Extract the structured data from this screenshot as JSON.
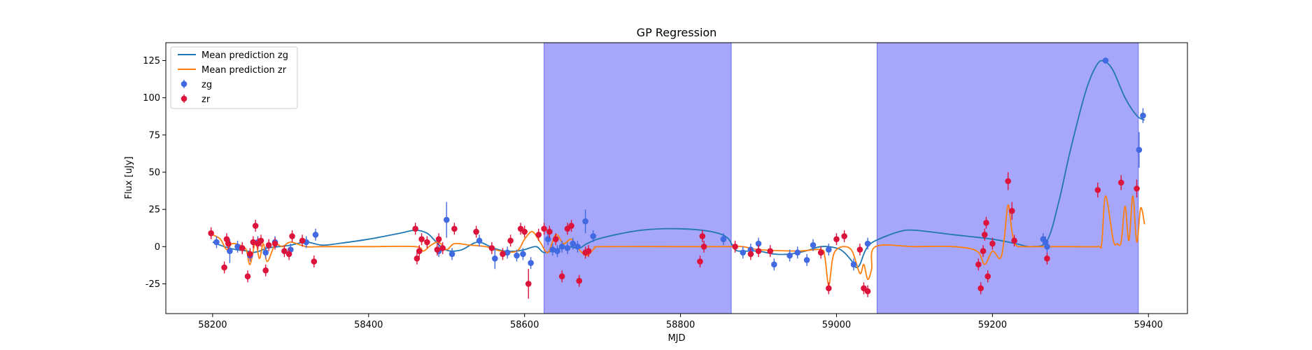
{
  "chart_data": {
    "type": "scatter",
    "title": "GP Regression",
    "xlabel": "MJD",
    "ylabel": "Flux [uJy]",
    "xlim": [
      58140,
      59450
    ],
    "ylim": [
      -45,
      137
    ],
    "xticks": [
      58200,
      58400,
      58600,
      58800,
      59000,
      59200,
      59400
    ],
    "yticks": [
      -25,
      0,
      25,
      50,
      75,
      100,
      125
    ],
    "legend_position": "upper-left",
    "shaded_regions": [
      {
        "x0": 58625,
        "x1": 58865,
        "color": "#a6a6fb"
      },
      {
        "x0": 59052,
        "x1": 59387,
        "color": "#a6a6fb"
      }
    ],
    "series": [
      {
        "name": "Mean prediction zg",
        "kind": "line",
        "color": "#1f77b4",
        "x": [
          58200,
          58215,
          58230,
          58245,
          58250,
          58260,
          58270,
          58285,
          58300,
          58320,
          58340,
          58360,
          58400,
          58440,
          58460,
          58475,
          58485,
          58495,
          58505,
          58520,
          58540,
          58560,
          58575,
          58590,
          58600,
          58615,
          58625,
          58640,
          58655,
          58670,
          58680,
          58700,
          58750,
          58800,
          58840,
          58860,
          58870,
          58880,
          58900,
          58920,
          58940,
          58960,
          58980,
          59000,
          59010,
          59020,
          59025,
          59030,
          59035,
          59040,
          59050,
          59080,
          59100,
          59150,
          59200,
          59230,
          59250,
          59270,
          59285,
          59300,
          59320,
          59335,
          59345,
          59355,
          59370,
          59385,
          59395
        ],
        "y": [
          3,
          0,
          -2,
          -3,
          -4,
          -3,
          -1,
          0,
          1,
          3,
          1,
          2,
          5,
          9,
          11,
          9,
          4,
          -1,
          -3,
          -2,
          3,
          -1,
          -3,
          -3,
          -2,
          0,
          -4,
          -2,
          0,
          -1,
          2,
          6,
          11,
          12,
          10,
          6,
          -2,
          -3,
          -3,
          -5,
          -5,
          -3,
          0,
          -1,
          -4,
          -10,
          -14,
          -12,
          -5,
          0,
          4,
          10,
          11,
          8,
          5,
          2,
          0,
          4,
          30,
          65,
          105,
          123,
          124,
          118,
          100,
          88,
          85
        ]
      },
      {
        "name": "Mean prediction zr",
        "kind": "line",
        "color": "#ff7f0e",
        "x": [
          58200,
          58210,
          58218,
          58225,
          58235,
          58243,
          58248,
          58255,
          58260,
          58265,
          58270,
          58280,
          58290,
          58300,
          58320,
          58340,
          58400,
          58460,
          58470,
          58480,
          58490,
          58500,
          58510,
          58530,
          58550,
          58570,
          58590,
          58600,
          58610,
          58620,
          58630,
          58640,
          58650,
          58660,
          58670,
          58680,
          58690,
          58700,
          58800,
          58830,
          58860,
          58880,
          58900,
          58950,
          58980,
          58985,
          58990,
          58995,
          59000,
          59010,
          59020,
          59030,
          59035,
          59040,
          59045,
          59050,
          59100,
          59150,
          59180,
          59190,
          59200,
          59210,
          59215,
          59220,
          59225,
          59230,
          59240,
          59260,
          59280,
          59300,
          59335,
          59340,
          59345,
          59355,
          59360,
          59365,
          59370,
          59375,
          59380,
          59385,
          59390,
          59395
        ],
        "y": [
          8,
          5,
          -2,
          2,
          1,
          -2,
          -12,
          3,
          -8,
          2,
          -10,
          1,
          0,
          3,
          0,
          0,
          0,
          0,
          -3,
          1,
          3,
          -2,
          2,
          1,
          0,
          -3,
          -3,
          5,
          10,
          3,
          -4,
          8,
          2,
          5,
          -2,
          -6,
          -1,
          0,
          0,
          0,
          0,
          0,
          -2,
          -3,
          -2,
          -7,
          -26,
          -8,
          -2,
          0,
          -3,
          -18,
          -12,
          -22,
          -15,
          0,
          0,
          0,
          -3,
          -12,
          -3,
          -8,
          5,
          28,
          10,
          1,
          0,
          0,
          0,
          0,
          0,
          2,
          34,
          4,
          2,
          3,
          27,
          4,
          34,
          3,
          26,
          15
        ]
      },
      {
        "name": "zg",
        "kind": "errorbar",
        "color": "#4169e1",
        "x": [
          58205,
          58222,
          58232,
          58248,
          58258,
          58268,
          58280,
          58300,
          58320,
          58332,
          58490,
          58500,
          58507,
          58542,
          58562,
          58578,
          58590,
          58598,
          58608,
          58630,
          58636,
          58642,
          58648,
          58655,
          58662,
          58668,
          58678,
          58688,
          58855,
          58880,
          58890,
          58900,
          58920,
          58940,
          58950,
          58962,
          58970,
          58990,
          59022,
          59040,
          59265,
          59268,
          59270,
          59345,
          59388,
          59393
        ],
        "y": [
          3,
          -3,
          0,
          -6,
          3,
          -4,
          3,
          -2,
          3,
          8,
          -3,
          18,
          -5,
          4,
          -8,
          -4,
          -6,
          -5,
          -11,
          5,
          -2,
          -3,
          0,
          -1,
          2,
          0,
          17,
          7,
          5,
          -4,
          -2,
          2,
          -12,
          -6,
          -4,
          -9,
          1,
          -2,
          -12,
          2,
          5,
          3,
          0,
          125,
          65,
          88
        ],
        "err": [
          4,
          8,
          4,
          4,
          4,
          4,
          4,
          4,
          4,
          4,
          4,
          12,
          4,
          4,
          7,
          4,
          4,
          4,
          4,
          4,
          4,
          4,
          4,
          4,
          4,
          4,
          8,
          4,
          4,
          4,
          4,
          4,
          4,
          4,
          4,
          4,
          4,
          4,
          4,
          4,
          4,
          4,
          4,
          2,
          12,
          5
        ]
      },
      {
        "name": "zr",
        "kind": "errorbar",
        "color": "#dc143c",
        "x": [
          58198,
          58215,
          58218,
          58220,
          58238,
          58245,
          58248,
          58252,
          58255,
          58258,
          58262,
          58268,
          58272,
          58280,
          58292,
          58298,
          58302,
          58315,
          58330,
          58460,
          58462,
          58465,
          58468,
          58475,
          58488,
          58490,
          58495,
          58510,
          58538,
          58558,
          58572,
          58582,
          58595,
          58600,
          58605,
          58618,
          58625,
          58632,
          58640,
          58648,
          58655,
          58660,
          58670,
          58678,
          58682,
          58825,
          58828,
          58830,
          58870,
          58890,
          58900,
          58915,
          58980,
          58990,
          59000,
          59010,
          59030,
          59035,
          59040,
          59182,
          59185,
          59188,
          59190,
          59192,
          59194,
          59200,
          59220,
          59225,
          59228,
          59270,
          59335,
          59365,
          59385
        ],
        "y": [
          9,
          -14,
          5,
          2,
          -1,
          -20,
          -5,
          3,
          14,
          2,
          4,
          -16,
          1,
          2,
          -3,
          -5,
          7,
          4,
          -10,
          12,
          -8,
          -3,
          5,
          3,
          -2,
          5,
          -1,
          12,
          10,
          -1,
          -5,
          4,
          12,
          10,
          -25,
          8,
          12,
          10,
          5,
          -20,
          12,
          14,
          -23,
          -4,
          -3,
          -10,
          7,
          0,
          0,
          -5,
          -3,
          -3,
          -4,
          -28,
          5,
          7,
          -2,
          -28,
          -30,
          -12,
          -28,
          -3,
          8,
          16,
          -20,
          2,
          44,
          24,
          4,
          -8,
          38,
          43,
          39
        ],
        "err": [
          4,
          4,
          4,
          4,
          4,
          4,
          4,
          4,
          4,
          4,
          4,
          4,
          4,
          4,
          4,
          4,
          4,
          4,
          4,
          4,
          4,
          4,
          4,
          4,
          4,
          4,
          4,
          4,
          4,
          4,
          4,
          4,
          4,
          4,
          10,
          4,
          4,
          4,
          4,
          4,
          4,
          4,
          4,
          4,
          4,
          4,
          4,
          4,
          4,
          4,
          4,
          4,
          4,
          4,
          4,
          4,
          4,
          4,
          4,
          4,
          4,
          4,
          4,
          4,
          4,
          4,
          6,
          6,
          4,
          4,
          5,
          5,
          6
        ]
      }
    ]
  }
}
